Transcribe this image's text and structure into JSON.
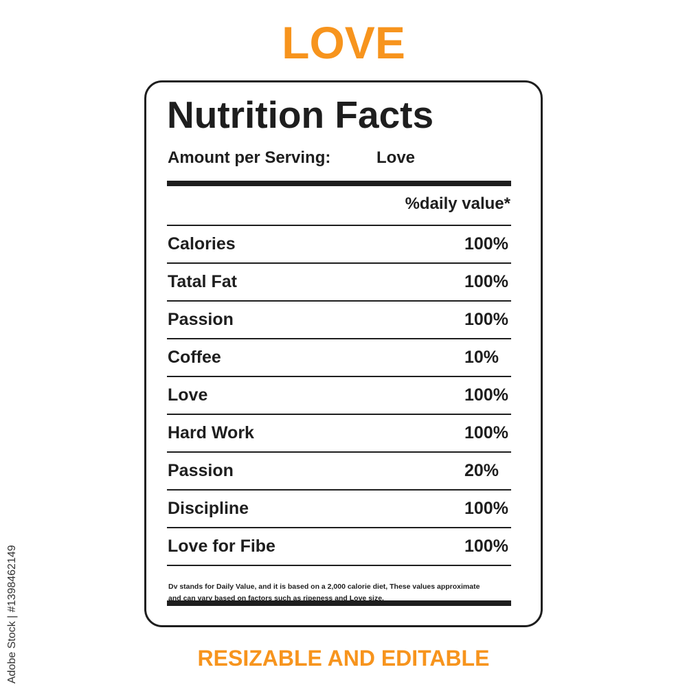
{
  "title": "LOVE",
  "label": {
    "heading": "Nutrition Facts",
    "serving_label": "Amount per Serving:",
    "serving_value": "Love",
    "column_header": "%daily value*",
    "rows": [
      [
        "Calories",
        "100%"
      ],
      [
        "Tatal Fat",
        "100%"
      ],
      [
        "Passion",
        "100%"
      ],
      [
        "Coffee",
        "10%"
      ],
      [
        "Love",
        "100%"
      ],
      [
        "Hard Work",
        "100%"
      ],
      [
        "Passion",
        "20%"
      ],
      [
        "Discipline",
        "100%"
      ],
      [
        "Love for Fibe",
        "100%"
      ]
    ],
    "footnote": [
      "Dv stands for Daily Value, and it is based on a 2,000 calorie diet, These values approximate",
      "and can vary based on factors such as ripeness and Love size."
    ]
  },
  "footer": "RESIZABLE AND EDITABLE",
  "watermark": "Adobe Stock | #1398462149"
}
